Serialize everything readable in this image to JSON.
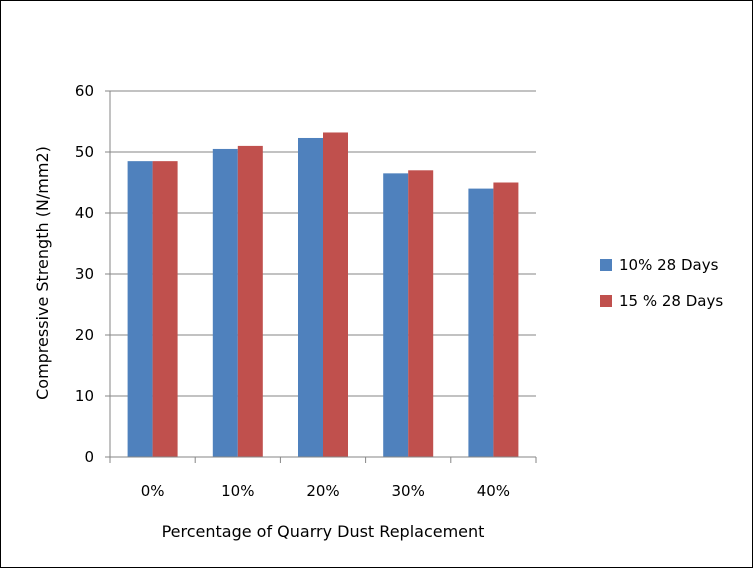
{
  "chart_data": {
    "type": "bar",
    "categories": [
      "0%",
      "10%",
      "20%",
      "30%",
      "40%"
    ],
    "series": [
      {
        "name": "10% 28 Days",
        "values": [
          48.5,
          50.5,
          52.3,
          46.5,
          44.0
        ],
        "color": "#4F81BD"
      },
      {
        "name": "15 % 28 Days",
        "values": [
          48.5,
          51.0,
          53.2,
          47.0,
          45.0
        ],
        "color": "#C0504D"
      }
    ],
    "title": "",
    "xlabel": "Percentage of Quarry Dust Replacement",
    "ylabel": "Compressive Strength (N/mm2)",
    "ylim": [
      0,
      60
    ],
    "yticks": [
      "0",
      "10",
      "20",
      "30",
      "40",
      "50",
      "60"
    ],
    "grid": true,
    "legend": "right"
  }
}
